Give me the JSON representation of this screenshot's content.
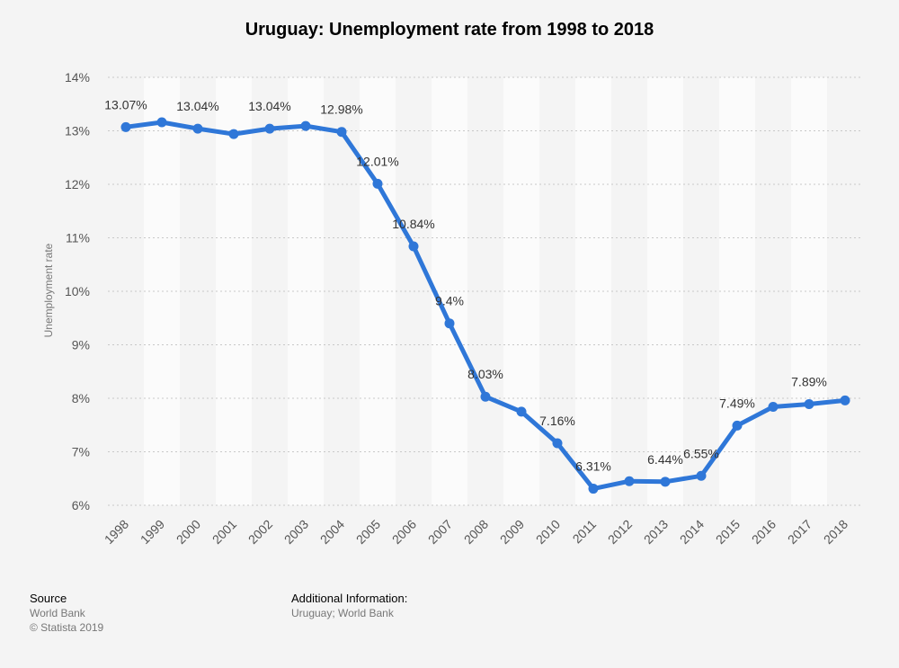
{
  "chart_data": {
    "type": "line",
    "title": "Uruguay: Unemployment rate from 1998 to 2018",
    "ylabel": "Unemployment rate",
    "xlabel": "",
    "categories": [
      "1998",
      "1999",
      "2000",
      "2001",
      "2002",
      "2003",
      "2004",
      "2005",
      "2006",
      "2007",
      "2008",
      "2009",
      "2010",
      "2011",
      "2012",
      "2013",
      "2014",
      "2015",
      "2016",
      "2017",
      "2018"
    ],
    "series": [
      {
        "values": [
          13.07,
          13.16,
          13.04,
          12.94,
          13.04,
          13.09,
          12.98,
          12.01,
          10.84,
          9.4,
          8.03,
          7.75,
          7.16,
          6.31,
          6.45,
          6.44,
          6.55,
          7.49,
          7.84,
          7.89,
          7.96
        ],
        "data_labels": {
          "0": "13.07%",
          "2": "13.04%",
          "4": "13.04%",
          "6": "12.98%",
          "7": "12.01%",
          "8": "10.84%",
          "9": "9.4%",
          "10": "8.03%",
          "12": "7.16%",
          "13": "6.31%",
          "15": "6.44%",
          "16": "6.55%",
          "17": "7.49%",
          "19": "7.89%"
        }
      }
    ],
    "ylim": [
      6,
      14
    ],
    "yticks": [
      "6%",
      "7%",
      "8%",
      "9%",
      "10%",
      "11%",
      "12%",
      "13%",
      "14%"
    ],
    "grid": true,
    "line_color": "#2f77d8"
  },
  "footer": {
    "source_heading": "Source",
    "source_name": "World Bank",
    "copyright": "© Statista 2019",
    "additional_heading": "Additional Information:",
    "additional_text": "Uruguay; World Bank"
  }
}
